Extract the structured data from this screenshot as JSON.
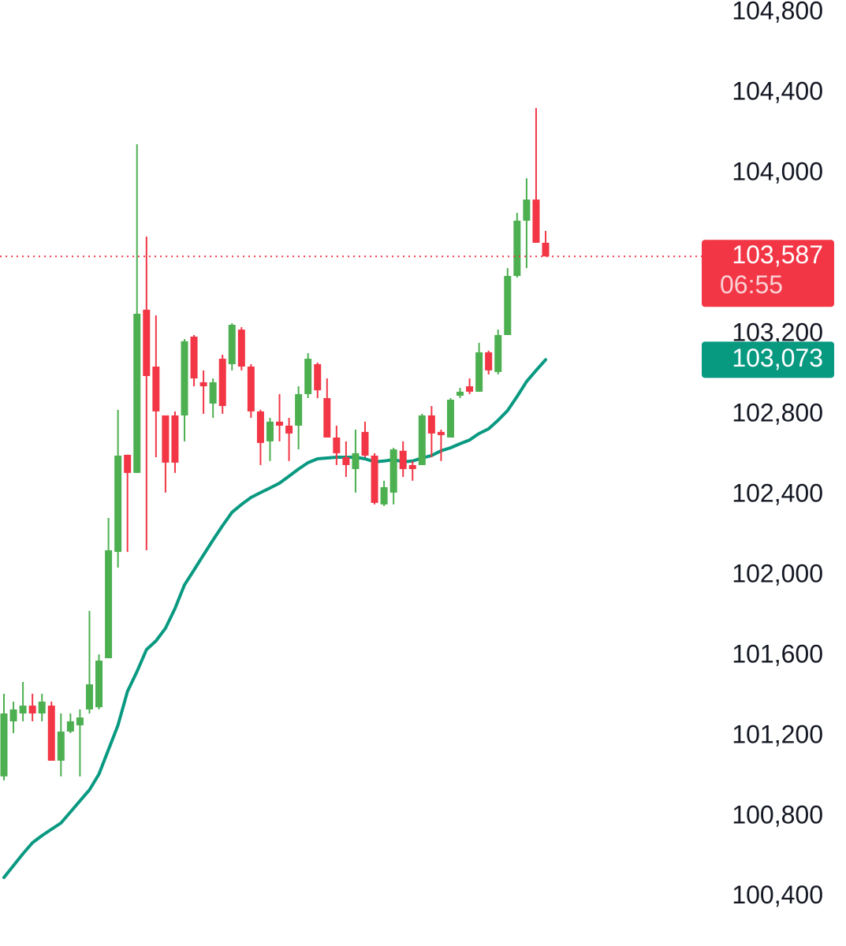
{
  "chart_data": {
    "type": "candlestick",
    "up_color": "#4caf50",
    "down_color": "#f23645",
    "ylim": [
      100156,
      104863
    ],
    "yticks": [
      {
        "value": 104800,
        "label": "104,800"
      },
      {
        "value": 104400,
        "label": "104,400"
      },
      {
        "value": 104000,
        "label": "104,000"
      },
      {
        "value": 103200,
        "label": "103,200"
      },
      {
        "value": 102800,
        "label": "102,800"
      },
      {
        "value": 102400,
        "label": "102,400"
      },
      {
        "value": 102000,
        "label": "102,000"
      },
      {
        "value": 101600,
        "label": "101,600"
      },
      {
        "value": 101200,
        "label": "101,200"
      },
      {
        "value": 100800,
        "label": "100,800"
      },
      {
        "value": 100400,
        "label": "100,400"
      }
    ],
    "open": [
      101000,
      101274,
      101313,
      101352,
      101313,
      101352,
      101078,
      101223,
      101254,
      101333,
      101344,
      101588,
      102117,
      102600,
      102510,
      103322,
      103039,
      102796,
      102796,
      102796,
      103188,
      102961,
      102855,
      103078,
      103051,
      103223,
      103039,
      102816,
      102667,
      102765,
      102745,
      102745,
      102902,
      103051,
      102882,
      102686,
      102588,
      102529,
      102714,
      102596,
      102353,
      102412,
      102620,
      102549,
      102549,
      102796,
      102714,
      102686,
      102894,
      102941,
      102914,
      103110,
      103012,
      103196,
      103490,
      103765,
      103870,
      103655
    ],
    "high": [
      101411,
      101372,
      101470,
      101411,
      101411,
      101372,
      101313,
      101313,
      101333,
      101823,
      101607,
      102286,
      102824,
      102600,
      104145,
      103686,
      103294,
      102796,
      102816,
      103176,
      103196,
      103020,
      102980,
      103098,
      103255,
      103235,
      103051,
      102824,
      102784,
      102902,
      102784,
      102941,
      103106,
      103059,
      102980,
      102745,
      102667,
      102725,
      102765,
      102608,
      102471,
      102635,
      102667,
      102569,
      102804,
      102843,
      102725,
      102882,
      102933,
      102980,
      103157,
      103118,
      103223,
      103529,
      103804,
      103976,
      104325,
      103714
    ],
    "low": [
      100980,
      101215,
      101274,
      101274,
      101274,
      101078,
      101000,
      101215,
      101000,
      101313,
      101333,
      101588,
      102039,
      102117,
      102510,
      102125,
      102588,
      102412,
      102510,
      102667,
      102941,
      102804,
      102784,
      102804,
      103020,
      103020,
      102784,
      102549,
      102569,
      102667,
      102569,
      102627,
      102882,
      102882,
      102686,
      102549,
      102490,
      102412,
      102588,
      102353,
      102345,
      102353,
      102490,
      102471,
      102549,
      102588,
      102569,
      102686,
      102882,
      102902,
      102914,
      103000,
      103000,
      103196,
      103482,
      103529,
      103655,
      103587
    ],
    "close": [
      101313,
      101333,
      101352,
      101313,
      101372,
      101078,
      101223,
      101274,
      101293,
      101458,
      101576,
      102125,
      102596,
      102510,
      103302,
      102992,
      102816,
      102561,
      102561,
      103165,
      102980,
      102941,
      102961,
      102843,
      103247,
      103039,
      102816,
      102659,
      102765,
      102745,
      102706,
      102902,
      103078,
      102921,
      102686,
      102608,
      102549,
      102608,
      102596,
      102361,
      102439,
      102627,
      102529,
      102529,
      102796,
      102706,
      102698,
      102874,
      102914,
      102914,
      103110,
      103020,
      103196,
      103490,
      103765,
      103870,
      103655,
      103587
    ],
    "ma": {
      "color": "#089981",
      "values": [
        100497,
        100556,
        100615,
        100670,
        100705,
        100737,
        100768,
        100823,
        100878,
        100933,
        101011,
        101133,
        101254,
        101423,
        101521,
        101631,
        101674,
        101737,
        101835,
        101953,
        102027,
        102102,
        102176,
        102247,
        102314,
        102353,
        102388,
        102412,
        102435,
        102459,
        102494,
        102529,
        102561,
        102580,
        102584,
        102588,
        102588,
        102588,
        102580,
        102565,
        102569,
        102576,
        102565,
        102569,
        102584,
        102596,
        102620,
        102635,
        102655,
        102674,
        102706,
        102729,
        102772,
        102820,
        102890,
        102965,
        103020,
        103073
      ]
    },
    "last_price": {
      "value": 103587,
      "label": "103,587"
    },
    "countdown": "06:55",
    "ma_last": {
      "value": 103073,
      "label": "103,073"
    }
  }
}
